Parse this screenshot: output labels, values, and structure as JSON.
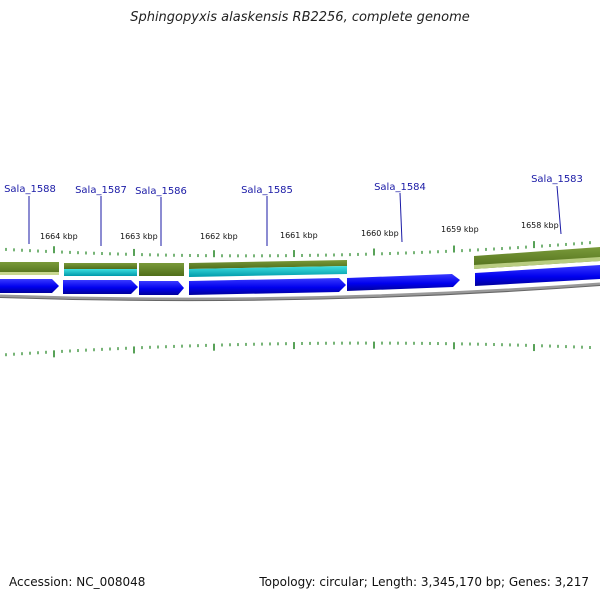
{
  "title": "Sphingopyxis alaskensis RB2256, complete genome",
  "footer": {
    "accession": "Accession: NC_008048",
    "summary": "Topology: circular; Length: 3,345,170 bp; Genes: 3,217"
  },
  "colors": {
    "forward_gene": "#0000ee",
    "cds_upper": "#6b8e23",
    "cds_lower": "#00cccc",
    "tick": "#2e8b2e",
    "backbone": "#888888",
    "label": "#1a1aa6"
  },
  "scale": {
    "ticks": [
      {
        "label": "1664 kbp"
      },
      {
        "label": "1663 kbp"
      },
      {
        "label": "1662 kbp"
      },
      {
        "label": "1661 kbp"
      },
      {
        "label": "1660 kbp"
      },
      {
        "label": "1659 kbp"
      },
      {
        "label": "1658 kbp"
      }
    ]
  },
  "genes": [
    {
      "name": "Sala_1588"
    },
    {
      "name": "Sala_1587"
    },
    {
      "name": "Sala_1586"
    },
    {
      "name": "Sala_1585"
    },
    {
      "name": "Sala_1584"
    },
    {
      "name": "Sala_1583"
    }
  ]
}
